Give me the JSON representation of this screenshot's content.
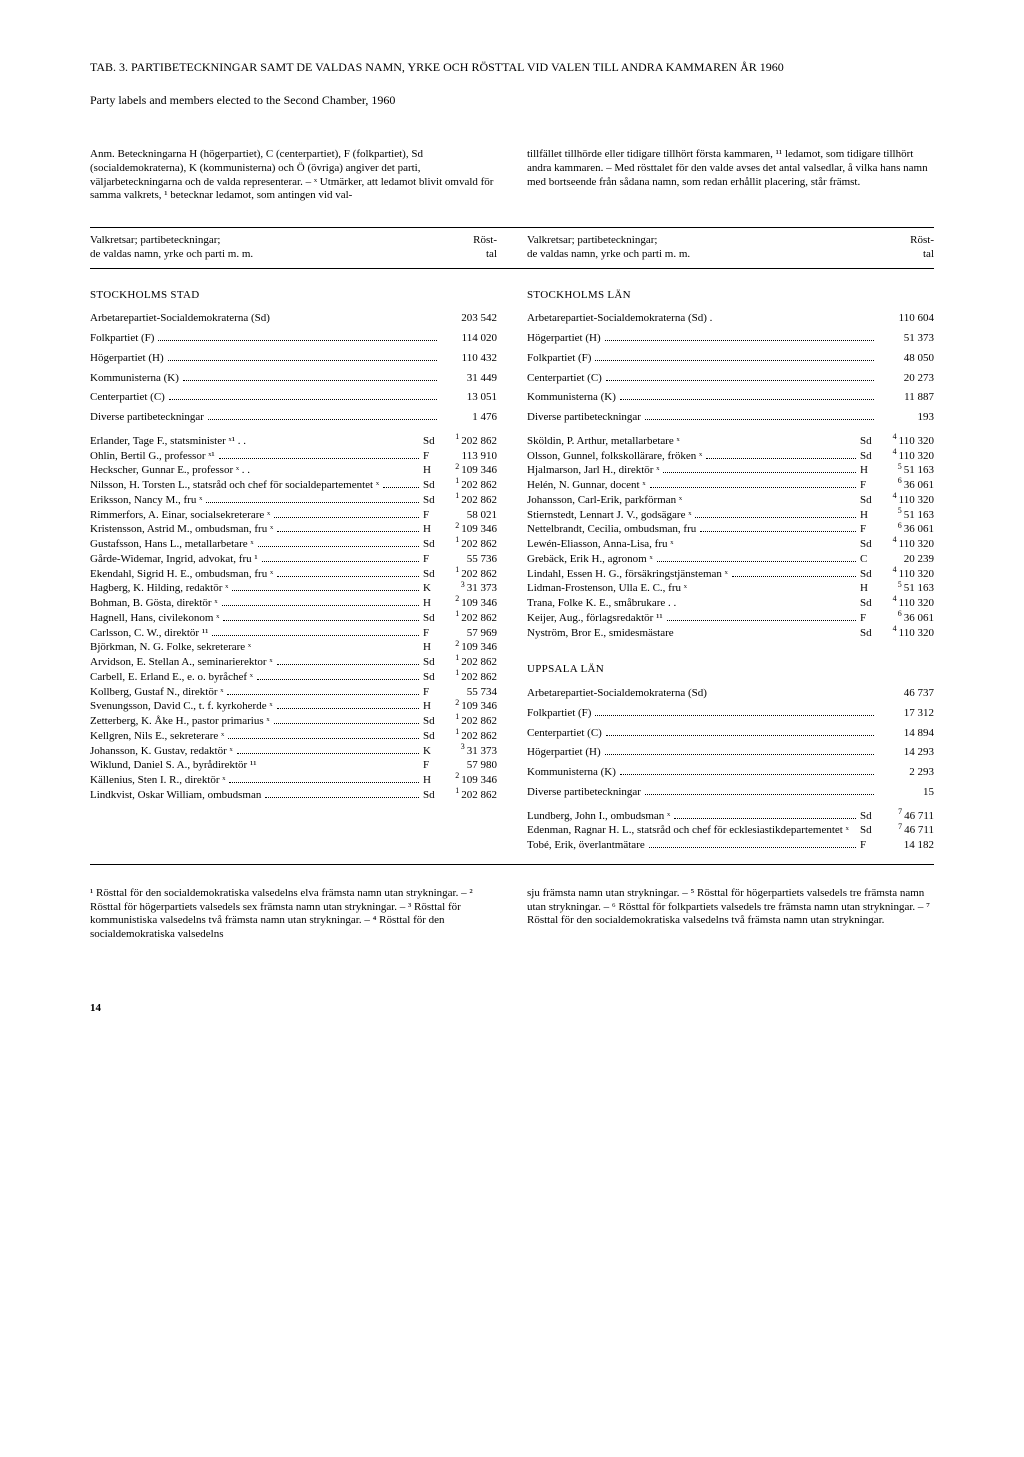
{
  "title": "TAB. 3. PARTIBETECKNINGAR SAMT DE VALDAS NAMN, YRKE OCH RÖSTTAL VID VALEN TILL ANDRA KAMMAREN ÅR 1960",
  "subtitle": "Party labels and members elected to the Second Chamber, 1960",
  "anm_left": "Anm. Beteckningarna H (högerpartiet), C (centerpartiet), F (folkpartiet), Sd (socialdemokraterna), K (kommunisterna) och Ö (övriga) angiver det parti, väljarbeteckningarna och de valda representerar. – ˣ Utmärker, att ledamot blivit omvald för samma valkrets, ¹ betecknar ledamot, som antingen vid val-",
  "anm_right": "tillfället tillhörde eller tidigare tillhört första kammaren, ¹¹ ledamot, som tidigare tillhört andra kammaren. – Med rösttalet för den valde avses det antal valsedlar, å vilka hans namn med bortseende från sådana namn, som redan erhållit placering, står främst.",
  "header_left": "Valkretsar; partibeteckningar;\nde valdas namn, yrke och parti m. m.",
  "header_right": "Röst-\ntal",
  "foot_left": "¹ Rösttal för den socialdemokratiska valsedelns elva främsta namn utan strykningar. – ² Rösttal för högerpartiets valsedels sex främsta namn utan strykningar. – ³ Rösttal för kommunistiska valsedelns två främsta namn utan strykningar. – ⁴ Rösttal för den socialdemokratiska valsedelns",
  "foot_right": "sju främsta namn utan strykningar. – ⁵ Rösttal för högerpartiets valsedels tre främsta namn utan strykningar. – ⁶ Rösttal för folkpartiets valsedels tre främsta namn utan strykningar. – ⁷ Rösttal för den socialdemokratiska valsedelns två främsta namn utan strykningar.",
  "page_number": "14",
  "left": {
    "region": "STOCKHOLMS STAD",
    "parties": [
      {
        "label": "Arbetarepartiet-Socialdemokraterna (Sd)",
        "val": "203 542",
        "plain": true
      },
      {
        "label": "Folkpartiet (F)",
        "val": "114 020"
      },
      {
        "label": "Högerpartiet (H)",
        "val": "110 432"
      },
      {
        "label": "Kommunisterna (K)",
        "val": "31 449"
      },
      {
        "label": "Centerpartiet (C)",
        "val": "13 051"
      },
      {
        "label": "Diverse partibeteckningar",
        "val": "1 476"
      }
    ],
    "members": [
      {
        "label": "Erlander, Tage F., statsminister ˣ¹ . .",
        "pt": "Sd",
        "sup": "1",
        "val": "202 862",
        "plain": true
      },
      {
        "label": "Ohlin, Bertil G., professor ˣ¹",
        "pt": "F",
        "sup": "",
        "val": "113 910"
      },
      {
        "label": "Heckscher, Gunnar E., professor ˣ . .",
        "pt": "H",
        "sup": "2",
        "val": "109 346",
        "plain": true
      },
      {
        "label": "Nilsson, H. Torsten L., statsråd och chef för socialdepartementet ˣ",
        "pt": "Sd",
        "sup": "1",
        "val": "202 862"
      },
      {
        "label": "Eriksson, Nancy M., fru ˣ",
        "pt": "Sd",
        "sup": "1",
        "val": "202 862"
      },
      {
        "label": "Rimmerfors, A. Einar, socialsekreterare ˣ",
        "pt": "F",
        "sup": "",
        "val": "58 021"
      },
      {
        "label": "Kristensson, Astrid M., ombudsman, fru ˣ",
        "pt": "H",
        "sup": "2",
        "val": "109 346"
      },
      {
        "label": "Gustafsson, Hans L., metallarbetare ˣ",
        "pt": "Sd",
        "sup": "1",
        "val": "202 862"
      },
      {
        "label": "Gårde-Widemar, Ingrid, advokat, fru ¹",
        "pt": "F",
        "sup": "",
        "val": "55 736"
      },
      {
        "label": "Ekendahl, Sigrid H. E., ombudsman, fru ˣ",
        "pt": "Sd",
        "sup": "1",
        "val": "202 862"
      },
      {
        "label": "Hagberg, K. Hilding, redaktör ˣ",
        "pt": "K",
        "sup": "3",
        "val": "31 373"
      },
      {
        "label": "Bohman, B. Gösta, direktör ˣ",
        "pt": "H",
        "sup": "2",
        "val": "109 346"
      },
      {
        "label": "Hagnell, Hans, civilekonom ˣ",
        "pt": "Sd",
        "sup": "1",
        "val": "202 862"
      },
      {
        "label": "Carlsson, C. W., direktör ¹¹",
        "pt": "F",
        "sup": "",
        "val": "57 969"
      },
      {
        "label": "Björkman, N. G. Folke, sekreterare ˣ",
        "pt": "H",
        "sup": "2",
        "val": "109 346",
        "plain": true
      },
      {
        "label": "Arvidson, E. Stellan A., seminarierektor ˣ",
        "pt": "Sd",
        "sup": "1",
        "val": "202 862"
      },
      {
        "label": "Carbell, E. Erland E., e. o. byråchef ˣ",
        "pt": "Sd",
        "sup": "1",
        "val": "202 862"
      },
      {
        "label": "Kollberg, Gustaf N., direktör ˣ",
        "pt": "F",
        "sup": "",
        "val": "55 734"
      },
      {
        "label": "Svenungsson, David C., t. f. kyrkoherde ˣ",
        "pt": "H",
        "sup": "2",
        "val": "109 346"
      },
      {
        "label": "Zetterberg, K. Åke H., pastor primarius ˣ",
        "pt": "Sd",
        "sup": "1",
        "val": "202 862"
      },
      {
        "label": "Kellgren, Nils E., sekreterare ˣ",
        "pt": "Sd",
        "sup": "1",
        "val": "202 862"
      },
      {
        "label": "Johansson, K. Gustav, redaktör ˣ",
        "pt": "K",
        "sup": "3",
        "val": "31 373"
      },
      {
        "label": "Wiklund, Daniel S. A., byrådirektör ¹¹",
        "pt": "F",
        "sup": "",
        "val": "57 980",
        "plain": true
      },
      {
        "label": "Källenius, Sten I. R., direktör ˣ",
        "pt": "H",
        "sup": "2",
        "val": "109 346"
      },
      {
        "label": "Lindkvist, Oskar William, ombudsman",
        "pt": "Sd",
        "sup": "1",
        "val": "202 862"
      }
    ]
  },
  "right": {
    "sections": [
      {
        "region": "STOCKHOLMS LÄN",
        "parties": [
          {
            "label": "Arbetarepartiet-Socialdemokraterna (Sd) .",
            "val": "110 604",
            "plain": true
          },
          {
            "label": "Högerpartiet (H)",
            "val": "51 373"
          },
          {
            "label": "Folkpartiet (F)",
            "val": "48 050"
          },
          {
            "label": "Centerpartiet (C)",
            "val": "20 273"
          },
          {
            "label": "Kommunisterna (K)",
            "val": "11 887"
          },
          {
            "label": "Diverse partibeteckningar",
            "val": "193"
          }
        ],
        "members": [
          {
            "label": "Sköldin, P. Arthur, metallarbetare ˣ",
            "pt": "Sd",
            "sup": "4",
            "val": "110 320",
            "plain": true
          },
          {
            "label": "Olsson, Gunnel, folkskollärare, fröken ˣ",
            "pt": "Sd",
            "sup": "4",
            "val": "110 320"
          },
          {
            "label": "Hjalmarson, Jarl H., direktör ˣ",
            "pt": "H",
            "sup": "5",
            "val": "51 163"
          },
          {
            "label": "Helén, N. Gunnar, docent ˣ",
            "pt": "F",
            "sup": "6",
            "val": "36 061"
          },
          {
            "label": "Johansson, Carl-Erik, parkförman ˣ",
            "pt": "Sd",
            "sup": "4",
            "val": "110 320",
            "plain": true
          },
          {
            "label": "Stiernstedt, Lennart J. V., godsägare ˣ",
            "pt": "H",
            "sup": "5",
            "val": "51 163"
          },
          {
            "label": "Nettelbrandt, Cecilia, ombudsman, fru",
            "pt": "F",
            "sup": "6",
            "val": "36 061"
          },
          {
            "label": "Lewén-Eliasson, Anna-Lisa, fru ˣ",
            "pt": "Sd",
            "sup": "4",
            "val": "110 320",
            "plain": true
          },
          {
            "label": "Grebäck, Erik H., agronom ˣ",
            "pt": "C",
            "sup": "",
            "val": "20 239"
          },
          {
            "label": "Lindahl, Essen H. G., försäkringstjänsteman ˣ",
            "pt": "Sd",
            "sup": "4",
            "val": "110 320"
          },
          {
            "label": "Lidman-Frostenson, Ulla E. C., fru ˣ",
            "pt": "H",
            "sup": "5",
            "val": "51 163",
            "plain": true
          },
          {
            "label": "Trana, Folke K. E., småbrukare . .",
            "pt": "Sd",
            "sup": "4",
            "val": "110 320",
            "plain": true
          },
          {
            "label": "Keijer, Aug., förlagsredaktör ¹¹",
            "pt": "F",
            "sup": "6",
            "val": "36 061"
          },
          {
            "label": "Nyström, Bror E., smidesmästare",
            "pt": "Sd",
            "sup": "4",
            "val": "110 320",
            "plain": true
          }
        ]
      },
      {
        "region": "UPPSALA LÄN",
        "parties": [
          {
            "label": "Arbetarepartiet-Socialdemokraterna (Sd)",
            "val": "46 737",
            "plain": true
          },
          {
            "label": "Folkpartiet (F)",
            "val": "17 312"
          },
          {
            "label": "Centerpartiet (C)",
            "val": "14 894"
          },
          {
            "label": "Högerpartiet (H)",
            "val": "14 293"
          },
          {
            "label": "Kommunisterna (K)",
            "val": "2 293"
          },
          {
            "label": "Diverse partibeteckningar",
            "val": "15"
          }
        ],
        "members": [
          {
            "label": "Lundberg, John I., ombudsman ˣ",
            "pt": "Sd",
            "sup": "7",
            "val": "46 711"
          },
          {
            "label": "Edenman, Ragnar H. L., statsråd och chef för ecklesiastikdepartementet ˣ",
            "pt": "Sd",
            "sup": "7",
            "val": "46 711",
            "plain": true
          },
          {
            "label": "Tobé, Erik, överlantmätare",
            "pt": "F",
            "sup": "",
            "val": "14 182"
          }
        ]
      }
    ]
  }
}
